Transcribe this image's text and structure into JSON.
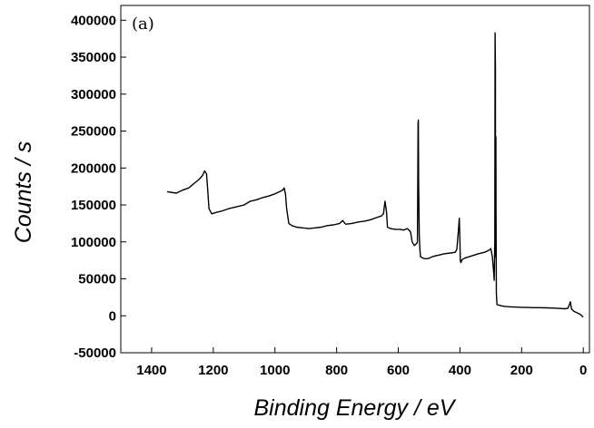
{
  "chart_data": {
    "type": "line",
    "panel_label": "(a)",
    "xlabel": "Binding Energy / eV",
    "ylabel": "Counts / s",
    "xlim": [
      1500,
      -20
    ],
    "ylim": [
      -50000,
      420000
    ],
    "x_ticks": [
      1400,
      1200,
      1000,
      800,
      600,
      400,
      200,
      0
    ],
    "x_tick_labels": [
      "1400",
      "1200",
      "1000",
      "800",
      "600",
      "400",
      "200",
      "0"
    ],
    "y_ticks": [
      -50000,
      0,
      50000,
      100000,
      150000,
      200000,
      250000,
      300000,
      350000,
      400000
    ],
    "y_tick_labels": [
      "-50000",
      "0",
      "50000",
      "100000",
      "150000",
      "200000",
      "250000",
      "300000",
      "350000",
      "400000"
    ],
    "grid": false,
    "line_color": "#000000",
    "series": [
      {
        "x": [
          1350,
          1320,
          1300,
          1280,
          1260,
          1245,
          1235,
          1228,
          1222,
          1218,
          1214,
          1205,
          1190,
          1170,
          1150,
          1120,
          1100,
          1080,
          1060,
          1040,
          1020,
          1000,
          985,
          975,
          970,
          966,
          962,
          955,
          945,
          930,
          910,
          890,
          870,
          850,
          830,
          810,
          790,
          780,
          775,
          770,
          750,
          730,
          710,
          690,
          670,
          655,
          648,
          643,
          638,
          635,
          625,
          610,
          595,
          582,
          572,
          565,
          560,
          555,
          548,
          540,
          538,
          537,
          536,
          535,
          534,
          532,
          530,
          528,
          520,
          510,
          500,
          490,
          470,
          450,
          430,
          415,
          410,
          405,
          402,
          400,
          399,
          397,
          393,
          385,
          370,
          355,
          340,
          320,
          305,
          300,
          295,
          292,
          290,
          289,
          287,
          286,
          285,
          284.8,
          284.5,
          284,
          283.5,
          283,
          282,
          280,
          275,
          270,
          265,
          260,
          250,
          240,
          230,
          220,
          200,
          180,
          160,
          140,
          120,
          100,
          80,
          60,
          50,
          45,
          42,
          40,
          38,
          35,
          30,
          20,
          10,
          5,
          0
        ],
        "y": [
          168000,
          166000,
          170000,
          173000,
          180000,
          185000,
          190000,
          196000,
          192000,
          170000,
          145000,
          138000,
          140000,
          142000,
          145000,
          148000,
          150000,
          155000,
          157000,
          160000,
          162000,
          165000,
          168000,
          170000,
          173000,
          165000,
          145000,
          125000,
          122000,
          120000,
          119000,
          118000,
          119000,
          120000,
          122000,
          123000,
          125000,
          129000,
          126000,
          124000,
          125000,
          127000,
          128000,
          130000,
          133000,
          135000,
          138000,
          155000,
          140000,
          120000,
          118000,
          117000,
          117000,
          116000,
          118000,
          116000,
          113000,
          100000,
          95000,
          98000,
          100000,
          160000,
          260000,
          265000,
          180000,
          110000,
          90000,
          80000,
          78000,
          77000,
          78000,
          80000,
          82000,
          84000,
          85000,
          86000,
          90000,
          115000,
          132000,
          100000,
          75000,
          72000,
          76000,
          78000,
          80000,
          82000,
          84000,
          86000,
          89000,
          91000,
          80000,
          65000,
          55000,
          48000,
          100000,
          383000,
          330000,
          240000,
          120000,
          80000,
          242000,
          150000,
          30000,
          15000,
          14500,
          14000,
          13500,
          13000,
          12500,
          12200,
          12000,
          11800,
          11500,
          11200,
          11000,
          11000,
          10800,
          10500,
          10000,
          9500,
          10000,
          15000,
          19000,
          14000,
          9000,
          8000,
          6000,
          4000,
          2000,
          0,
          -1500
        ]
      }
    ]
  }
}
